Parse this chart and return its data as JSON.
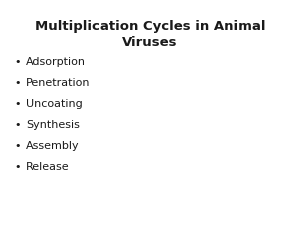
{
  "title_line1": "Multiplication Cycles in Animal",
  "title_line2": "Viruses",
  "bullet_items": [
    "Adsorption",
    "Penetration",
    "Uncoating",
    "Synthesis",
    "Assembly",
    "Release"
  ],
  "background_color": "#ffffff",
  "text_color": "#1a1a1a",
  "title_fontsize": 9.5,
  "bullet_fontsize": 8.0,
  "bullet_symbol": "•"
}
